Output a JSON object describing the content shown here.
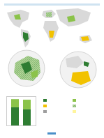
{
  "map": {
    "land_color": "#d9d9d9",
    "swatch_colors": [
      "#2e7d32",
      "#8bc34a",
      "#f2c200",
      "#c5e1a5",
      "#9e9e9e",
      "#fff59d"
    ]
  },
  "chart_data": {
    "type": "bar",
    "stacked": true,
    "categories": [
      null,
      null
    ],
    "series": [
      {
        "color": "#2e7d32",
        "values": [
          62,
          55
        ]
      },
      {
        "color": "#8bc34a",
        "values": [
          28,
          33
        ]
      }
    ],
    "ylim": [
      0,
      100
    ],
    "tick_labels": false
  }
}
